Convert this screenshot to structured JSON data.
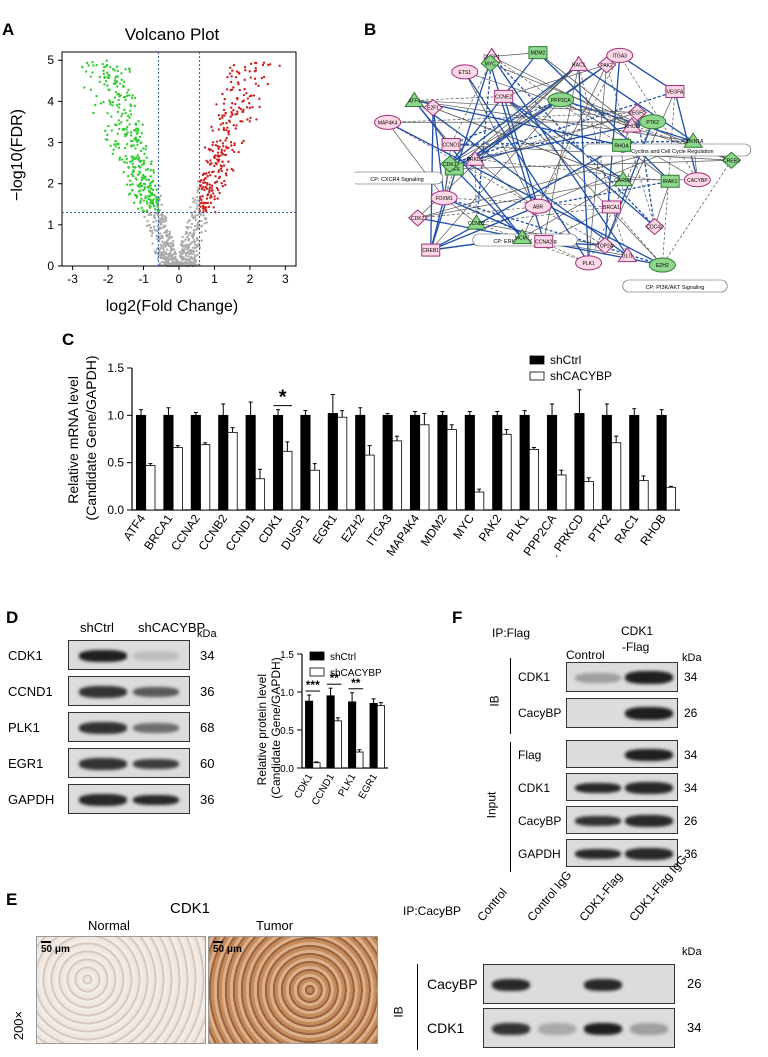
{
  "panels": {
    "A": "A",
    "B": "B",
    "C": "C",
    "D": "D",
    "E": "E",
    "F": "F"
  },
  "volcano": {
    "title": "Volcano Plot",
    "xlabel": "log2(Fold Change)",
    "ylabel": "−log10(FDR)",
    "xticks": [
      "-3",
      "-2",
      "-1",
      "0",
      "1",
      "2",
      "3"
    ],
    "yticks": [
      "0",
      "1",
      "2",
      "3",
      "4",
      "5"
    ],
    "colors": {
      "down": "#33cc33",
      "up": "#cc2222",
      "ns": "#aaaaaa"
    }
  },
  "network": {
    "nodes": [
      "CACYBP",
      "IRAK1",
      "CARM1",
      "CDC42",
      "EZH2",
      "BRCA1",
      "GLI1",
      "TOP2A",
      "PLK1",
      "CCNA2",
      "MCM7",
      "EGR1",
      "ABR",
      "CREB1",
      "CCNB2",
      "CDK2",
      "FOXM1",
      "IRF6",
      "PRKD1",
      "CDK1",
      "MAP4K4",
      "CCND1",
      "ATF4",
      "E2F1",
      "ETS1",
      "CCNE2",
      "DUSP1",
      "MYC",
      "PPP2CA",
      "MDM2",
      "RAC1",
      "PAK2",
      "ITGA3",
      "VEGFA",
      "RHOB",
      "VEGFC",
      "PTK2",
      "RHOA",
      "CDKN1A",
      "CREB3"
    ],
    "pathways": [
      "CP: CXCR4 Signaling",
      "CP: Cyclins and Cell Cycle Regulation",
      "CP: ERK/MAPK Signaling",
      "CP: PI3K/AKT Signaling"
    ]
  },
  "chart_data": [
    {
      "type": "bar",
      "title": "",
      "ylabel": "Relative mRNA level (Candidate Gene/GAPDH)",
      "ylim": [
        0,
        1.5
      ],
      "yticks": [
        "0.0",
        "0.5",
        "1.0",
        "1.5"
      ],
      "categories": [
        "ATF4",
        "BRCA1",
        "CCNA2",
        "CCNB2",
        "CCND1",
        "CDK1",
        "DUSP1",
        "EGR1",
        "EZH2",
        "ITGA3",
        "MAP4K4",
        "MDM2",
        "MYC",
        "PAK2",
        "PLK1",
        "PPP2CA",
        "PRKCD",
        "PTK2",
        "RAC1",
        "RHOB"
      ],
      "series": [
        {
          "name": "shCtrl",
          "color": "#000000",
          "values": [
            1.0,
            1.0,
            1.0,
            1.0,
            1.0,
            1.0,
            1.0,
            1.02,
            1.0,
            1.0,
            1.0,
            1.0,
            1.0,
            1.0,
            1.0,
            1.0,
            1.02,
            1.0,
            1.0,
            1.0
          ],
          "errors": [
            0.06,
            0.08,
            0.03,
            0.12,
            0.14,
            0.06,
            0.05,
            0.2,
            0.08,
            0.02,
            0.04,
            0.04,
            0.04,
            0.04,
            0.05,
            0.12,
            0.25,
            0.12,
            0.07,
            0.06
          ]
        },
        {
          "name": "shCACYBP",
          "color": "#ffffff",
          "values": [
            0.47,
            0.66,
            0.69,
            0.82,
            0.33,
            0.62,
            0.42,
            0.98,
            0.58,
            0.73,
            0.9,
            0.85,
            0.19,
            0.8,
            0.64,
            0.37,
            0.3,
            0.71,
            0.31,
            0.24
          ],
          "errors": [
            0.02,
            0.02,
            0.02,
            0.05,
            0.1,
            0.1,
            0.07,
            0.07,
            0.1,
            0.05,
            0.12,
            0.05,
            0.03,
            0.05,
            0.02,
            0.05,
            0.04,
            0.07,
            0.05,
            0.01
          ]
        }
      ],
      "annotations": [
        {
          "category": "CDK1",
          "text": "*"
        }
      ],
      "legend": "top-right",
      "category_prefix_marks": {
        "PRKCD": "."
      }
    },
    {
      "type": "bar",
      "title": "",
      "ylabel": "Relative protein level (Candidate Gene/GAPDH)",
      "ylim": [
        0,
        1.5
      ],
      "yticks": [
        "0.0",
        "0.5",
        "1.0",
        "1.5"
      ],
      "categories": [
        "CDK1",
        "CCND1",
        "PLK1",
        "EGR1"
      ],
      "series": [
        {
          "name": "shCtrl",
          "color": "#000000",
          "values": [
            0.88,
            0.95,
            0.87,
            0.85
          ],
          "errors": [
            0.08,
            0.1,
            0.12,
            0.06
          ]
        },
        {
          "name": "shCACYBP",
          "color": "#ffffff",
          "values": [
            0.07,
            0.62,
            0.21,
            0.82
          ],
          "errors": [
            0.01,
            0.04,
            0.03,
            0.04
          ]
        }
      ],
      "annotations": [
        {
          "category": "CDK1",
          "text": "***"
        },
        {
          "category": "CCND1",
          "text": "**"
        },
        {
          "category": "PLK1",
          "text": "**"
        }
      ],
      "legend": "top-right"
    }
  ],
  "blotD": {
    "cols": [
      "shCtrl",
      "shCACYBP"
    ],
    "kda_label": "kDa",
    "rows": [
      {
        "label": "CDK1",
        "kda": "34",
        "bands": [
          0.95,
          0.15
        ]
      },
      {
        "label": "CCND1",
        "kda": "36",
        "bands": [
          0.85,
          0.65
        ]
      },
      {
        "label": "PLK1",
        "kda": "68",
        "bands": [
          0.85,
          0.55
        ]
      },
      {
        "label": "EGR1",
        "kda": "60",
        "bands": [
          0.85,
          0.8
        ]
      },
      {
        "label": "GAPDH",
        "kda": "36",
        "bands": [
          0.9,
          0.9
        ]
      }
    ]
  },
  "ihc": {
    "title": "CDK1",
    "normal": "Normal",
    "tumor": "Tumor",
    "scale": "50 μm",
    "mag": "200×"
  },
  "blotF": {
    "ip": "IP:Flag",
    "cols": [
      "Control",
      "CDK1",
      "-Flag"
    ],
    "kda_label": "kDa",
    "ib_label": "IB",
    "input_label": "Input",
    "ib_rows": [
      {
        "label": "CDK1",
        "kda": "34",
        "bands": [
          0.3,
          0.95
        ]
      },
      {
        "label": "CacyBP",
        "kda": "26",
        "bands": [
          0.0,
          0.95
        ]
      }
    ],
    "input_rows": [
      {
        "label": "Flag",
        "kda": "34",
        "bands": [
          0.0,
          0.95
        ]
      },
      {
        "label": "CDK1",
        "kda": "34",
        "bands": [
          0.9,
          0.9
        ]
      },
      {
        "label": "CacyBP",
        "kda": "26",
        "bands": [
          0.85,
          0.9
        ]
      },
      {
        "label": "GAPDH",
        "kda": "36",
        "bands": [
          0.9,
          0.9
        ]
      }
    ]
  },
  "blotF2": {
    "ip": "IP:CacyBP",
    "cols": [
      "Control",
      "Control IgG",
      "CDK1-Flag",
      "CDK1-Flag IgG"
    ],
    "kda_label": "kDa",
    "ib_label": "IB",
    "rows": [
      {
        "label": "CacyBP",
        "kda": "26",
        "bands": [
          0.9,
          0.0,
          0.9,
          0.0
        ]
      },
      {
        "label": "CDK1",
        "kda": "34",
        "bands": [
          0.85,
          0.25,
          0.95,
          0.3
        ]
      }
    ]
  }
}
